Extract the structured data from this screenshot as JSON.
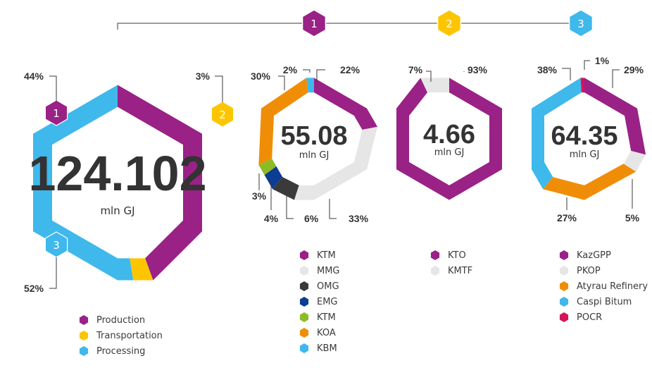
{
  "colors": {
    "purple": "#9a2186",
    "yellow": "#fdc500",
    "blue": "#3fb8ec",
    "lightgray": "#e6e6e6",
    "darkgray": "#3a3a3a",
    "navy": "#0d3d92",
    "green": "#8dbb25",
    "orange": "#ef8e06",
    "crimson": "#d4145a",
    "text": "#3a3a3a"
  },
  "chart_data": [
    {
      "type": "pie",
      "total": "124.102",
      "unit": "mln GJ",
      "slices": [
        {
          "label": "Production",
          "value": 44,
          "pct_label": "44%",
          "color": "#9a2186",
          "badge": "1"
        },
        {
          "label": "Transportation",
          "value": 3,
          "pct_label": "3%",
          "color": "#fdc500",
          "badge": "2"
        },
        {
          "label": "Processing",
          "value": 52,
          "pct_label": "52%",
          "color": "#3fb8ec",
          "badge": "3"
        }
      ]
    },
    {
      "type": "pie",
      "badge": "1",
      "total": "55.08",
      "unit": "mln GJ",
      "slices": [
        {
          "label": "KTM",
          "value": 22,
          "pct_label": "22%",
          "color": "#9a2186"
        },
        {
          "label": "MMG",
          "value": 33,
          "pct_label": "33%",
          "color": "#e6e6e6"
        },
        {
          "label": "OMG",
          "value": 6,
          "pct_label": "6%",
          "color": "#3a3a3a"
        },
        {
          "label": "EMG",
          "value": 4,
          "pct_label": "4%",
          "color": "#0d3d92"
        },
        {
          "label": "KTM",
          "value": 3,
          "pct_label": "3%",
          "color": "#8dbb25"
        },
        {
          "label": "KOA",
          "value": 30,
          "pct_label": "30%",
          "color": "#ef8e06"
        },
        {
          "label": "KBM",
          "value": 2,
          "pct_label": "2%",
          "color": "#3fb8ec"
        }
      ]
    },
    {
      "type": "pie",
      "badge": "2",
      "total": "4.66",
      "unit": "mln GJ",
      "slices": [
        {
          "label": "KTO",
          "value": 93,
          "pct_label": "93%",
          "color": "#9a2186"
        },
        {
          "label": "KMTF",
          "value": 7,
          "pct_label": "7%",
          "color": "#e6e6e6"
        }
      ]
    },
    {
      "type": "pie",
      "badge": "3",
      "total": "64.35",
      "unit": "mln GJ",
      "slices": [
        {
          "label": "KazGPP",
          "value": 29,
          "pct_label": "29%",
          "color": "#9a2186"
        },
        {
          "label": "PKOP",
          "value": 5,
          "pct_label": "5%",
          "color": "#e6e6e6"
        },
        {
          "label": "Atyrau Refinery",
          "value": 27,
          "pct_label": "27%",
          "color": "#ef8e06"
        },
        {
          "label": "Caspi Bitum",
          "value": 38,
          "pct_label": "38%",
          "color": "#3fb8ec"
        },
        {
          "label": "POCR",
          "value": 1,
          "pct_label": "1%",
          "color": "#d4145a"
        }
      ]
    }
  ]
}
